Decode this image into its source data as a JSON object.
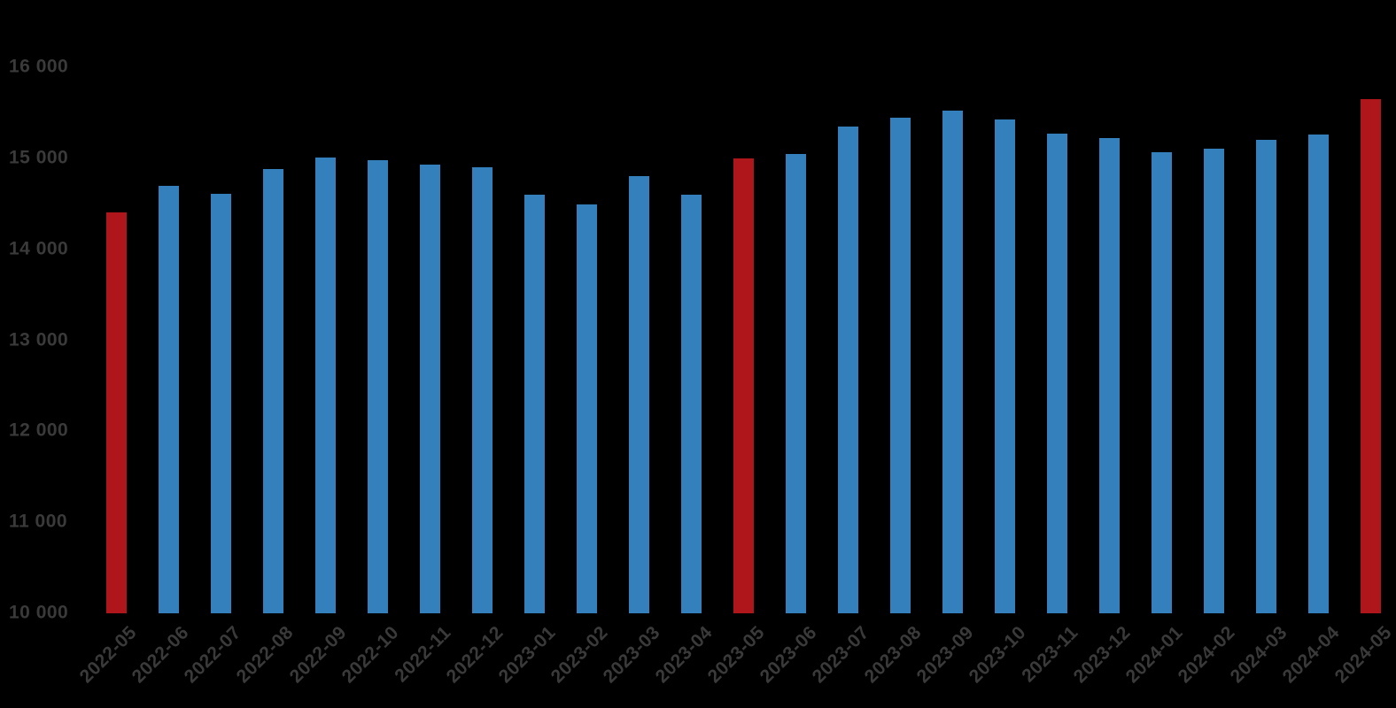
{
  "chart_data": {
    "type": "bar",
    "title": "",
    "xlabel": "",
    "ylabel": "",
    "grid": false,
    "legend": "none",
    "ylim": [
      10000,
      16000
    ],
    "yticks": [
      {
        "value": 10000,
        "label": "10 000"
      },
      {
        "value": 11000,
        "label": "11 000"
      },
      {
        "value": 12000,
        "label": "12 000"
      },
      {
        "value": 13000,
        "label": "13 000"
      },
      {
        "value": 14000,
        "label": "14 000"
      },
      {
        "value": 15000,
        "label": "15 000"
      },
      {
        "value": 16000,
        "label": "16 000"
      }
    ],
    "categories": [
      "2022-05",
      "2022-06",
      "2022-07",
      "2022-08",
      "2022-09",
      "2022-10",
      "2022-11",
      "2022-12",
      "2023-01",
      "2023-02",
      "2023-03",
      "2023-04",
      "2023-05",
      "2023-06",
      "2023-07",
      "2023-08",
      "2023-09",
      "2023-10",
      "2023-11",
      "2023-12",
      "2024-01",
      "2024-02",
      "2024-03",
      "2024-04",
      "2024-05"
    ],
    "values": [
      14410,
      14700,
      14610,
      14880,
      15010,
      14980,
      14930,
      14900,
      14600,
      14490,
      14810,
      14600,
      15000,
      15050,
      15350,
      15450,
      15530,
      15430,
      15270,
      15220,
      15070,
      15110,
      15200,
      15260,
      15650
    ],
    "highlight_indices": [
      0,
      12,
      24
    ],
    "colors": {
      "bar": "#3480BC",
      "highlight": "#AF161B",
      "tick_text": "#3A3A3A",
      "background": "#000000"
    }
  }
}
